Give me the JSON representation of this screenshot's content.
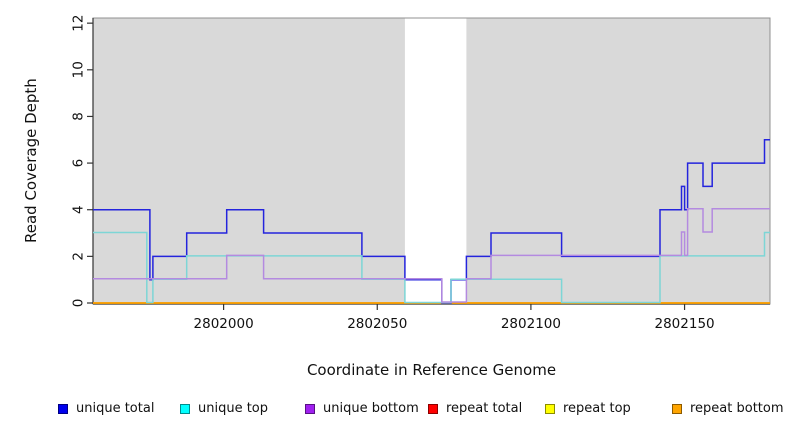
{
  "figure": {
    "ylabel": "Read Coverage Depth",
    "xlabel": "Coordinate in Reference Genome"
  },
  "chart_data": {
    "type": "line",
    "step": true,
    "title": "",
    "xlabel": "Coordinate in Reference Genome",
    "ylabel": "Read Coverage Depth",
    "x_axis": {
      "min": 2801957.5,
      "max": 2802177.8,
      "ticks": [
        2802000,
        2802050,
        2802100,
        2802150
      ]
    },
    "y_axis": {
      "min": 0,
      "max": 12,
      "ticks": [
        0,
        2,
        4,
        6,
        8,
        10,
        12
      ]
    },
    "grid": false,
    "legend_position": "bottom",
    "background": {
      "plot_bg": "#ffffff",
      "shaded_color": "#d9d9d9",
      "shaded_regions": [
        [
          2801957.5,
          2802059
        ],
        [
          2802079,
          2802177.8
        ]
      ],
      "uncovered_gap": [
        2802059,
        2802079
      ]
    },
    "axis_colors": {
      "box": "#909090",
      "axis": "#333333",
      "tick_label": "#111111"
    },
    "draw_order": [
      "repeat total",
      "repeat top",
      "repeat bottom",
      "unique total",
      "unique top",
      "unique bottom"
    ],
    "series": [
      {
        "name": "unique total",
        "swatch_color": "#0000ee",
        "line_color": "#2424dd",
        "points": [
          [
            2801957.5,
            4
          ],
          [
            2801976,
            1
          ],
          [
            2801977,
            2
          ],
          [
            2801988,
            3
          ],
          [
            2802001,
            4
          ],
          [
            2802013,
            3
          ],
          [
            2802045,
            2
          ],
          [
            2802059,
            1
          ],
          [
            2802071,
            0
          ],
          [
            2802074,
            1
          ],
          [
            2802079,
            2
          ],
          [
            2802087,
            3
          ],
          [
            2802110,
            2
          ],
          [
            2802142,
            4
          ],
          [
            2802149,
            5
          ],
          [
            2802150,
            4
          ],
          [
            2802151,
            6
          ],
          [
            2802156,
            5
          ],
          [
            2802159,
            6
          ],
          [
            2802176,
            7
          ],
          [
            2802177.8,
            7
          ]
        ]
      },
      {
        "name": "unique top",
        "swatch_color": "#00ffff",
        "line_color": "#7dd6d6",
        "points": [
          [
            2801957.5,
            3
          ],
          [
            2801975,
            0
          ],
          [
            2801977,
            1
          ],
          [
            2801988,
            2
          ],
          [
            2802045,
            1
          ],
          [
            2802059,
            0
          ],
          [
            2802074,
            1
          ],
          [
            2802110,
            0
          ],
          [
            2802142,
            2
          ],
          [
            2802176,
            3
          ],
          [
            2802177.8,
            3
          ]
        ]
      },
      {
        "name": "unique bottom",
        "swatch_color": "#a020f0",
        "line_color": "#b48ae0",
        "points": [
          [
            2801957.5,
            1
          ],
          [
            2802001,
            2
          ],
          [
            2802013,
            1
          ],
          [
            2802071,
            0
          ],
          [
            2802079,
            1
          ],
          [
            2802087,
            2
          ],
          [
            2802149,
            3
          ],
          [
            2802150,
            2
          ],
          [
            2802151,
            4
          ],
          [
            2802156,
            3
          ],
          [
            2802159,
            4
          ],
          [
            2802177.8,
            4
          ]
        ]
      },
      {
        "name": "repeat total",
        "swatch_color": "#ff0000",
        "line_color": "#dd2222",
        "points": [
          [
            2801957.5,
            0
          ],
          [
            2802177.8,
            0
          ]
        ]
      },
      {
        "name": "repeat top",
        "swatch_color": "#ffff00",
        "line_color": "#eeee00",
        "points": [
          [
            2801957.5,
            0
          ],
          [
            2802177.8,
            0
          ]
        ]
      },
      {
        "name": "repeat bottom",
        "swatch_color": "#ffa500",
        "line_color": "#ff9d00",
        "points": [
          [
            2801957.5,
            0
          ],
          [
            2802177.8,
            0
          ]
        ]
      }
    ]
  }
}
